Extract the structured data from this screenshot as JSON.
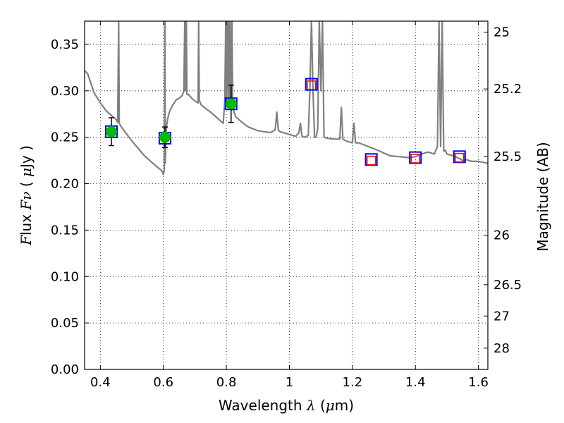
{
  "chart_data": {
    "type": "line",
    "xlabel": "Wavelength  λ (μm)",
    "ylabel": "Flux  Fν  ( μJy )",
    "ylabel_right": "Magnitude (AB)",
    "xlim": [
      0.35,
      1.63
    ],
    "ylim": [
      0.0,
      0.375
    ],
    "grid": true,
    "x_ticks": [
      0.4,
      0.6,
      0.8,
      1.0,
      1.2,
      1.4,
      1.6
    ],
    "x_tick_labels": [
      "0.4",
      "0.6",
      "0.8",
      "1",
      "1.2",
      "1.4",
      "1.6"
    ],
    "y_ticks": [
      0.0,
      0.05,
      0.1,
      0.15,
      0.2,
      0.25,
      0.3,
      0.35
    ],
    "y_tick_labels": [
      "0.00",
      "0.05",
      "0.10",
      "0.15",
      "0.20",
      "0.25",
      "0.30",
      "0.35"
    ],
    "right_ticks": [
      {
        "label": "25",
        "flux": 0.3631
      },
      {
        "label": "25.2",
        "flux": 0.302
      },
      {
        "label": "25.5",
        "flux": 0.2291
      },
      {
        "label": "26",
        "flux": 0.1445
      },
      {
        "label": "26.5",
        "flux": 0.0912
      },
      {
        "label": "27",
        "flux": 0.0575
      },
      {
        "label": "28",
        "flux": 0.0229
      }
    ],
    "series": [
      {
        "kind": "model_spectrum",
        "color": "#808080",
        "x": [
          0.35,
          0.36,
          0.38,
          0.4,
          0.42,
          0.44,
          0.448,
          0.452,
          0.455,
          0.458,
          0.46,
          0.465,
          0.48,
          0.5,
          0.52,
          0.54,
          0.56,
          0.58,
          0.595,
          0.6,
          0.603,
          0.605,
          0.606,
          0.608,
          0.61,
          0.615,
          0.62,
          0.63,
          0.64,
          0.65,
          0.66,
          0.665,
          0.668,
          0.67,
          0.673,
          0.675,
          0.68,
          0.69,
          0.7,
          0.71,
          0.712,
          0.714,
          0.716,
          0.72,
          0.73,
          0.75,
          0.77,
          0.79,
          0.795,
          0.798,
          0.8,
          0.803,
          0.806,
          0.808,
          0.81,
          0.812,
          0.815,
          0.818,
          0.82,
          0.822,
          0.825,
          0.83,
          0.85,
          0.87,
          0.9,
          0.92,
          0.94,
          0.955,
          0.96,
          0.965,
          0.97,
          0.98,
          1.0,
          1.02,
          1.03,
          1.035,
          1.04,
          1.05,
          1.06,
          1.065,
          1.07,
          1.075,
          1.08,
          1.085,
          1.09,
          1.095,
          1.1,
          1.105,
          1.11,
          1.12,
          1.14,
          1.16,
          1.165,
          1.17,
          1.18,
          1.2,
          1.205,
          1.21,
          1.22,
          1.25,
          1.28,
          1.3,
          1.32,
          1.35,
          1.38,
          1.4,
          1.42,
          1.44,
          1.46,
          1.47,
          1.475,
          1.48,
          1.485,
          1.49,
          1.495,
          1.5,
          1.52,
          1.54,
          1.55,
          1.56,
          1.58,
          1.6,
          1.63
        ],
        "y": [
          0.322,
          0.318,
          0.298,
          0.287,
          0.278,
          0.272,
          0.27,
          0.268,
          0.266,
          0.375,
          0.265,
          0.262,
          0.255,
          0.246,
          0.238,
          0.23,
          0.224,
          0.218,
          0.214,
          0.21,
          0.215,
          0.375,
          0.222,
          0.245,
          0.262,
          0.272,
          0.278,
          0.285,
          0.29,
          0.292,
          0.295,
          0.3,
          0.375,
          0.3,
          0.375,
          0.296,
          0.296,
          0.292,
          0.289,
          0.287,
          0.375,
          0.29,
          0.288,
          0.285,
          0.282,
          0.277,
          0.271,
          0.265,
          0.29,
          0.375,
          0.285,
          0.375,
          0.29,
          0.375,
          0.285,
          0.375,
          0.29,
          0.375,
          0.285,
          0.28,
          0.276,
          0.272,
          0.266,
          0.261,
          0.257,
          0.256,
          0.255,
          0.258,
          0.277,
          0.258,
          0.256,
          0.255,
          0.253,
          0.251,
          0.255,
          0.265,
          0.251,
          0.25,
          0.252,
          0.3,
          0.375,
          0.3,
          0.25,
          0.25,
          0.26,
          0.375,
          0.3,
          0.375,
          0.25,
          0.249,
          0.248,
          0.248,
          0.282,
          0.248,
          0.246,
          0.244,
          0.265,
          0.244,
          0.244,
          0.24,
          0.236,
          0.233,
          0.23,
          0.229,
          0.228,
          0.229,
          0.232,
          0.234,
          0.232,
          0.24,
          0.375,
          0.24,
          0.375,
          0.235,
          0.236,
          0.232,
          0.23,
          0.227,
          0.225,
          0.226,
          0.224,
          0.224,
          0.222
        ]
      },
      {
        "kind": "observed_photometry",
        "marker": "circle",
        "color": "#00bb00",
        "x": [
          0.435,
          0.605,
          0.815
        ],
        "y": [
          0.256,
          0.25,
          0.286
        ],
        "yerr": [
          0.015,
          0.011,
          0.02
        ]
      },
      {
        "kind": "model_photometry_blue",
        "marker": "square",
        "color": "#0000ff",
        "x": [
          0.435,
          0.605,
          0.815,
          1.07,
          1.26,
          1.4,
          1.54
        ],
        "y": [
          0.256,
          0.249,
          0.286,
          0.307,
          0.226,
          0.228,
          0.229
        ]
      },
      {
        "kind": "model_photometry_red",
        "marker": "square",
        "color": "#ff0000",
        "x": [
          1.07,
          1.26,
          1.4,
          1.54
        ],
        "y": [
          0.306,
          0.225,
          0.227,
          0.228
        ]
      }
    ]
  }
}
